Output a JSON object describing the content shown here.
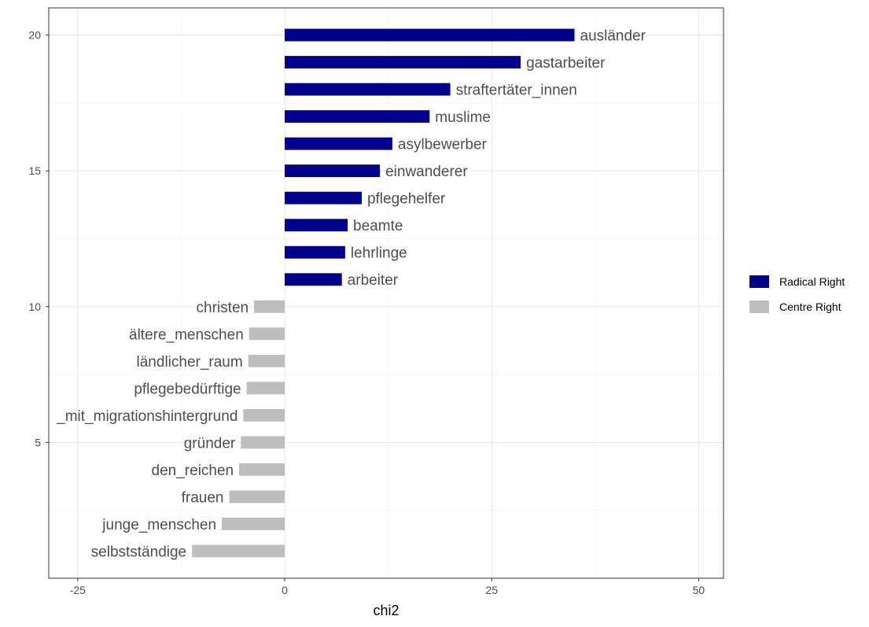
{
  "chart_data": {
    "type": "bar",
    "orientation": "horizontal",
    "title": "",
    "xlabel": "chi2",
    "ylabel": "",
    "xlim": [
      -28.5,
      53
    ],
    "ylim": [
      0,
      21
    ],
    "x_ticks": [
      -25,
      0,
      25,
      50
    ],
    "y_ticks": [
      5,
      10,
      15,
      20
    ],
    "x_tick_labels": [
      "-25",
      "0",
      "25",
      "50"
    ],
    "y_tick_labels": [
      "5",
      "10",
      "15",
      "20"
    ],
    "grid": true,
    "legend_position": "right",
    "series": [
      {
        "name": "Radical Right",
        "color": "#00008B",
        "points": [
          {
            "y": 20,
            "value": 35.0,
            "label": "ausländer"
          },
          {
            "y": 19,
            "value": 28.5,
            "label": "gastarbeiter"
          },
          {
            "y": 18,
            "value": 20.0,
            "label": "straftertäter_innen"
          },
          {
            "y": 17,
            "value": 17.5,
            "label": "muslime"
          },
          {
            "y": 16,
            "value": 13.0,
            "label": "asylbewerber"
          },
          {
            "y": 15,
            "value": 11.5,
            "label": "einwanderer"
          },
          {
            "y": 14,
            "value": 9.3,
            "label": "pflegehelfer"
          },
          {
            "y": 13,
            "value": 7.6,
            "label": "beamte"
          },
          {
            "y": 12,
            "value": 7.3,
            "label": "lehrlinge"
          },
          {
            "y": 11,
            "value": 6.9,
            "label": "arbeiter"
          }
        ]
      },
      {
        "name": "Centre Right",
        "color": "#BEBEBE",
        "points": [
          {
            "y": 10,
            "value": -3.7,
            "label": "christen"
          },
          {
            "y": 9,
            "value": -4.3,
            "label": "ältere_menschen"
          },
          {
            "y": 8,
            "value": -4.4,
            "label": "ländlicher_raum"
          },
          {
            "y": 7,
            "value": -4.6,
            "label": "pflegebedürftige"
          },
          {
            "y": 6,
            "value": -5.0,
            "label": "_mit_migrationshintergrund"
          },
          {
            "y": 5,
            "value": -5.3,
            "label": "gründer"
          },
          {
            "y": 4,
            "value": -5.5,
            "label": "den_reichen"
          },
          {
            "y": 3,
            "value": -6.7,
            "label": "frauen"
          },
          {
            "y": 2,
            "value": -7.6,
            "label": "junge_menschen"
          },
          {
            "y": 1,
            "value": -11.2,
            "label": "selbstständige"
          }
        ]
      }
    ]
  }
}
